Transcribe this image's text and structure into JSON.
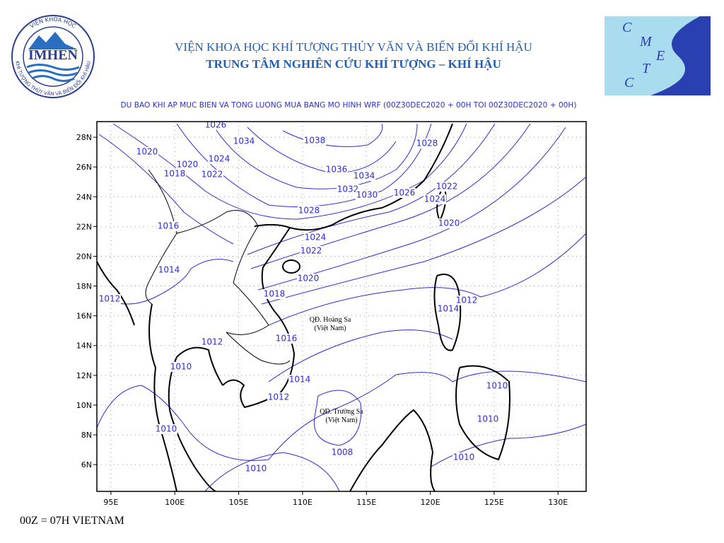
{
  "header": {
    "line1": "VIỆN KHOA HỌC KHÍ TƯỢNG THỦY VĂN VÀ BIẾN ĐỔI KHÍ HẬU",
    "line2": "TRUNG TÂM NGHIÊN CỨU KHÍ TƯỢNG – KHÍ HẬU"
  },
  "logo_left": {
    "name": "IMHEN",
    "ring_top": "VIỆN KHOA HỌC",
    "ring_bottom": "KHÍ TƯỢNG THỦY VĂN VÀ BIẾN ĐỔI KHÍ HẬU"
  },
  "logo_right": {
    "letters": [
      "C",
      "M",
      "E",
      "T",
      "C"
    ]
  },
  "map": {
    "title": "DU BAO KHI AP MUC BIEN VA TONG LUONG MUA BANG MO HINH WRF (00Z30DEC2020 + 00H TOI 00Z30DEC2020 + 00H)",
    "xlim": [
      93.9,
      132.2
    ],
    "ylim": [
      4.2,
      29.05
    ],
    "xticks": [
      {
        "value": 95,
        "label": "95E"
      },
      {
        "value": 100,
        "label": "100E"
      },
      {
        "value": 105,
        "label": "105E"
      },
      {
        "value": 110,
        "label": "110E"
      },
      {
        "value": 115,
        "label": "115E"
      },
      {
        "value": 120,
        "label": "120E"
      },
      {
        "value": 125,
        "label": "125E"
      },
      {
        "value": 130,
        "label": "130E"
      }
    ],
    "yticks": [
      {
        "value": 6,
        "label": "6N"
      },
      {
        "value": 8,
        "label": "8N"
      },
      {
        "value": 10,
        "label": "10N"
      },
      {
        "value": 12,
        "label": "12N"
      },
      {
        "value": 14,
        "label": "14N"
      },
      {
        "value": 16,
        "label": "16N"
      },
      {
        "value": 18,
        "label": "18N"
      },
      {
        "value": 20,
        "label": "20N"
      },
      {
        "value": 22,
        "label": "22N"
      },
      {
        "value": 24,
        "label": "24N"
      },
      {
        "value": 26,
        "label": "26N"
      },
      {
        "value": 28,
        "label": "28N"
      }
    ],
    "grid": true,
    "contour_labels": [
      "1026",
      "1034",
      "1038",
      "1020",
      "1024",
      "1020",
      "1018",
      "1022",
      "1036",
      "1034",
      "1032",
      "1030",
      "1026",
      "1028",
      "1022",
      "1024",
      "1028",
      "1020",
      "1016",
      "1024",
      "1022",
      "1014",
      "1020",
      "1018",
      "1012",
      "1012",
      "1014",
      "1016",
      "1012",
      "1010",
      "1014",
      "1012",
      "1010",
      "1010",
      "1010",
      "1008",
      "1010",
      "1010"
    ],
    "places": [
      [
        "QĐ. Hoàng Sa",
        "(Việt Nam)"
      ],
      [
        "QĐ. Trường Sa",
        "(Việt Nam)"
      ]
    ]
  },
  "footer": "00Z = 07H VIETNAM"
}
